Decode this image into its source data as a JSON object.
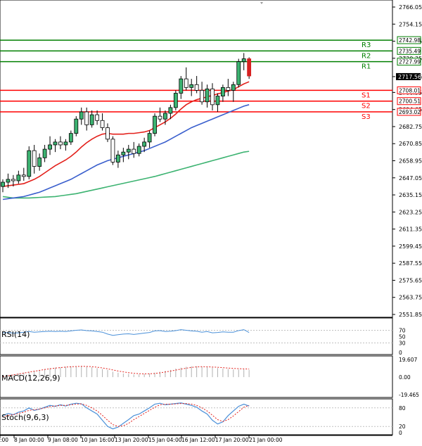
{
  "chart_data": [
    {
      "panel": "price",
      "type": "candlestick",
      "ylim": [
        2551.85,
        2766.05
      ],
      "y_ticks": [
        "2766.05",
        "2754.15",
        "2742.25",
        "2730.35",
        "2717.56",
        "2706.55",
        "2694.65",
        "2682.75",
        "2670.85",
        "2658.95",
        "2647.05",
        "2635.15",
        "2623.25",
        "2611.35",
        "2599.45",
        "2587.55",
        "2575.65",
        "2563.75",
        "2551.85"
      ],
      "levels": [
        {
          "name": "R3",
          "value": 2742.98,
          "label": "2742.98",
          "color": "#007f00"
        },
        {
          "name": "R2",
          "value": 2735.49,
          "label": "2735.49",
          "color": "#007f00"
        },
        {
          "name": "R1",
          "value": 2727.99,
          "label": "2727.99",
          "color": "#007f00"
        },
        {
          "name": "S1",
          "value": 2708.01,
          "label": "2708.01",
          "color": "#ff0000"
        },
        {
          "name": "S2",
          "value": 2700.51,
          "label": "2700.51",
          "color": "#ff0000"
        },
        {
          "name": "S3",
          "value": 2693.02,
          "label": "2693.02",
          "color": "#ff0000"
        }
      ],
      "current_price": {
        "value": 2717.56,
        "label": "2717.56"
      },
      "candles": [
        [
          2641,
          2646,
          2637,
          2644
        ],
        [
          2644,
          2650,
          2640,
          2646
        ],
        [
          2646,
          2649,
          2641,
          2645
        ],
        [
          2645,
          2652,
          2643,
          2649
        ],
        [
          2649,
          2654,
          2645,
          2648
        ],
        [
          2648,
          2669,
          2646,
          2666
        ],
        [
          2666,
          2670,
          2650,
          2655
        ],
        [
          2655,
          2664,
          2652,
          2661
        ],
        [
          2661,
          2670,
          2658,
          2667
        ],
        [
          2667,
          2676,
          2663,
          2670
        ],
        [
          2670,
          2674,
          2665,
          2672
        ],
        [
          2672,
          2676,
          2667,
          2670
        ],
        [
          2670,
          2674,
          2666,
          2672
        ],
        [
          2672,
          2680,
          2670,
          2678
        ],
        [
          2678,
          2690,
          2676,
          2688
        ],
        [
          2688,
          2696,
          2684,
          2693
        ],
        [
          2693,
          2696,
          2680,
          2684
        ],
        [
          2684,
          2694,
          2682,
          2691
        ],
        [
          2691,
          2694,
          2684,
          2687
        ],
        [
          2687,
          2692,
          2680,
          2682
        ],
        [
          2682,
          2685,
          2672,
          2674
        ],
        [
          2674,
          2676,
          2656,
          2658
        ],
        [
          2658,
          2666,
          2654,
          2663
        ],
        [
          2663,
          2668,
          2658,
          2665
        ],
        [
          2665,
          2670,
          2660,
          2667
        ],
        [
          2667,
          2672,
          2661,
          2664
        ],
        [
          2664,
          2671,
          2662,
          2669
        ],
        [
          2669,
          2675,
          2665,
          2672
        ],
        [
          2672,
          2680,
          2668,
          2678
        ],
        [
          2678,
          2692,
          2676,
          2690
        ],
        [
          2690,
          2696,
          2686,
          2688
        ],
        [
          2688,
          2694,
          2684,
          2692
        ],
        [
          2692,
          2698,
          2688,
          2696
        ],
        [
          2696,
          2708,
          2694,
          2706
        ],
        [
          2706,
          2718,
          2702,
          2716
        ],
        [
          2716,
          2724,
          2708,
          2710
        ],
        [
          2710,
          2716,
          2704,
          2712
        ],
        [
          2712,
          2718,
          2706,
          2708
        ],
        [
          2708,
          2714,
          2698,
          2700
        ],
        [
          2700,
          2712,
          2696,
          2709
        ],
        [
          2709,
          2713,
          2694,
          2698
        ],
        [
          2698,
          2706,
          2693,
          2704
        ],
        [
          2704,
          2712,
          2700,
          2710
        ],
        [
          2710,
          2716,
          2704,
          2708
        ],
        [
          2708,
          2714,
          2700,
          2712
        ],
        [
          2712,
          2730,
          2710,
          2728
        ],
        [
          2728,
          2734,
          2722,
          2730
        ],
        [
          2730,
          2731,
          2716,
          2718
        ]
      ],
      "ma_fast": [
        2641,
        2641.5,
        2642,
        2642.5,
        2643,
        2644.5,
        2646,
        2648,
        2650.5,
        2653,
        2655.5,
        2657.5,
        2659.5,
        2662,
        2665,
        2668.5,
        2671.5,
        2674,
        2676,
        2677.5,
        2678,
        2677.5,
        2677.5,
        2677.5,
        2678,
        2678,
        2678.5,
        2679,
        2680,
        2682,
        2684,
        2686,
        2688.5,
        2691.5,
        2695,
        2698,
        2700,
        2701.5,
        2702.5,
        2703.5,
        2704.5,
        2705.5,
        2706.5,
        2707.5,
        2708.5,
        2710.5,
        2712.5,
        2714
      ],
      "ma_mid": [
        2632,
        2632.5,
        2633,
        2633.5,
        2634,
        2635,
        2636,
        2637,
        2638.5,
        2640,
        2641.5,
        2643,
        2644.5,
        2646,
        2648,
        2650,
        2652,
        2654,
        2656,
        2657.5,
        2659,
        2660,
        2661,
        2662,
        2663,
        2664,
        2665,
        2666,
        2667.5,
        2669,
        2670.5,
        2672,
        2674,
        2676,
        2678,
        2680,
        2682,
        2683.5,
        2685,
        2686.5,
        2688,
        2689.5,
        2691,
        2692.5,
        2694,
        2695.5,
        2697,
        2698
      ],
      "ma_slow": [
        2634,
        2633.5,
        2633,
        2633,
        2633,
        2633,
        2633.2,
        2633.4,
        2633.6,
        2633.8,
        2634,
        2634.5,
        2635,
        2635.5,
        2636,
        2636.8,
        2637.6,
        2638.4,
        2639.2,
        2640,
        2640.8,
        2641.6,
        2642.4,
        2643.2,
        2644,
        2644.8,
        2645.6,
        2646.4,
        2647.2,
        2648,
        2649,
        2650,
        2651,
        2652,
        2653,
        2654,
        2655,
        2656,
        2657,
        2658,
        2659,
        2660,
        2661,
        2662,
        2663,
        2664,
        2665,
        2665.5
      ]
    },
    {
      "panel": "rsi",
      "type": "line",
      "title": "RSI(14)",
      "ylim": [
        0,
        100
      ],
      "y_ticks": [
        "70",
        "50",
        "30",
        "0"
      ],
      "values": [
        62,
        63,
        61,
        62,
        64,
        66,
        64,
        65,
        66,
        67,
        66,
        67,
        66,
        68,
        70,
        71,
        69,
        68,
        66,
        64,
        58,
        54,
        56,
        58,
        59,
        57,
        59,
        61,
        63,
        68,
        69,
        66,
        67,
        69,
        72,
        70,
        68,
        67,
        64,
        66,
        62,
        63,
        65,
        64,
        64,
        69,
        72,
        63
      ]
    },
    {
      "panel": "macd",
      "type": "bar",
      "title": "MACD(12,26,9)",
      "ylim": [
        -19.465,
        19.607
      ],
      "y_ticks": [
        "19.607",
        "0.00",
        "-19.465"
      ],
      "histogram": [
        1,
        2,
        3,
        4,
        5,
        6,
        7,
        8,
        9,
        10,
        10.5,
        11,
        11.5,
        12,
        12,
        12,
        11.5,
        11,
        10,
        9,
        8,
        6,
        5,
        4,
        3.5,
        3,
        3,
        3.5,
        4,
        5,
        6,
        7,
        8,
        9.5,
        10.5,
        11.5,
        12,
        12,
        11.5,
        11,
        10.5,
        10,
        9.5,
        9,
        8.5,
        8.5,
        8.5,
        8
      ],
      "signal": [
        0.5,
        1.5,
        2.5,
        3.5,
        4.5,
        5.5,
        6.5,
        7.5,
        8.5,
        9.3,
        10,
        10.6,
        11.1,
        11.5,
        11.8,
        12,
        11.9,
        11.6,
        11,
        10.2,
        9.2,
        8,
        6.8,
        5.8,
        5,
        4.3,
        3.8,
        3.6,
        3.7,
        4.1,
        4.8,
        5.7,
        6.7,
        7.8,
        8.9,
        9.9,
        10.8,
        11.4,
        11.6,
        11.5,
        11.2,
        10.9,
        10.5,
        10.1,
        9.7,
        9.4,
        9.2,
        9
      ]
    },
    {
      "panel": "stoch",
      "type": "line",
      "title": "Stoch(9,6,3)",
      "ylim": [
        0,
        100
      ],
      "y_ticks": [
        "80",
        "20",
        "0"
      ],
      "main": [
        55,
        62,
        58,
        66,
        70,
        80,
        72,
        76,
        82,
        88,
        85,
        90,
        86,
        92,
        95,
        93,
        80,
        70,
        60,
        40,
        20,
        12,
        18,
        30,
        42,
        55,
        60,
        70,
        80,
        92,
        95,
        90,
        92,
        94,
        96,
        92,
        88,
        82,
        70,
        60,
        40,
        28,
        35,
        55,
        70,
        85,
        92,
        86
      ],
      "signal": [
        50,
        56,
        58,
        62,
        66,
        72,
        74,
        76,
        80,
        84,
        86,
        88,
        88,
        90,
        92,
        93,
        88,
        80,
        70,
        56,
        40,
        26,
        20,
        22,
        30,
        42,
        52,
        62,
        72,
        82,
        90,
        92,
        92,
        93,
        94,
        94,
        92,
        88,
        80,
        70,
        56,
        42,
        36,
        42,
        54,
        68,
        82,
        88
      ]
    }
  ],
  "time_axis": {
    "labels": [
      ":00",
      "8 Jan 00:00",
      "9 Jan 08:00",
      "10 Jan 16:00",
      "13 Jan 20:00",
      "15 Jan 04:00",
      "16 Jan 12:00",
      "17 Jan 20:00",
      "21 Jan 00:00"
    ]
  }
}
